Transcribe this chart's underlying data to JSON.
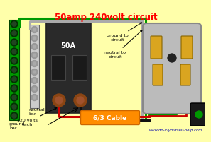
{
  "bg_color": "#FFFFAA",
  "title": "50amp 240volt circuit",
  "title_color": "#FF0000",
  "title_fontsize": 8.5,
  "website": "www.do-it-yourself-help.com",
  "website_color": "#0000AA",
  "cable_label": "6/3 Cable",
  "cable_color": "#FF8C00",
  "label_ground_bar": "ground\nbar",
  "label_neutral_bar": "neutral\nbar",
  "label_120v": "120 volts\neach",
  "label_ground_circuit": "ground to\ncircuit",
  "label_neutral_circuit": "neutral to\ncircuit",
  "label_50a": "50A",
  "green_color": "#009900",
  "red_color": "#CC0000",
  "black_color": "#111111",
  "gray_color": "#AAAAAA",
  "brown_color": "#8B4513",
  "gold_color": "#DAA520",
  "outlet_gray": "#BBBBBB"
}
